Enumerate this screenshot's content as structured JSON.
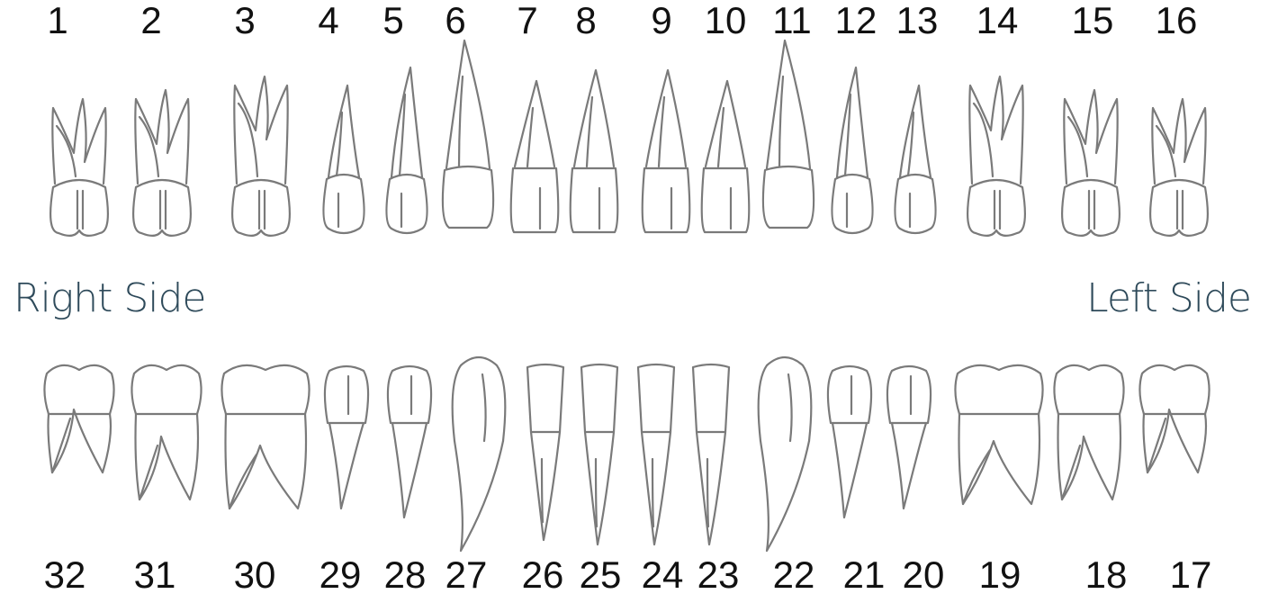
{
  "labels": {
    "right_side": "Right Side",
    "left_side": "Left Side"
  },
  "upper_teeth": [
    {
      "number": "1",
      "kind": "molar"
    },
    {
      "number": "2",
      "kind": "molar"
    },
    {
      "number": "3",
      "kind": "molar"
    },
    {
      "number": "4",
      "kind": "premolar"
    },
    {
      "number": "5",
      "kind": "premolar"
    },
    {
      "number": "6",
      "kind": "canine"
    },
    {
      "number": "7",
      "kind": "incisor"
    },
    {
      "number": "8",
      "kind": "incisor"
    },
    {
      "number": "9",
      "kind": "incisor"
    },
    {
      "number": "10",
      "kind": "incisor"
    },
    {
      "number": "11",
      "kind": "canine"
    },
    {
      "number": "12",
      "kind": "premolar"
    },
    {
      "number": "13",
      "kind": "premolar"
    },
    {
      "number": "14",
      "kind": "molar"
    },
    {
      "number": "15",
      "kind": "molar"
    },
    {
      "number": "16",
      "kind": "molar"
    }
  ],
  "lower_teeth": [
    {
      "number": "32",
      "kind": "molar"
    },
    {
      "number": "31",
      "kind": "molar"
    },
    {
      "number": "30",
      "kind": "molar"
    },
    {
      "number": "29",
      "kind": "premolar"
    },
    {
      "number": "28",
      "kind": "premolar"
    },
    {
      "number": "27",
      "kind": "canine"
    },
    {
      "number": "26",
      "kind": "incisor"
    },
    {
      "number": "25",
      "kind": "incisor"
    },
    {
      "number": "24",
      "kind": "incisor"
    },
    {
      "number": "23",
      "kind": "incisor"
    },
    {
      "number": "22",
      "kind": "canine"
    },
    {
      "number": "21",
      "kind": "premolar"
    },
    {
      "number": "20",
      "kind": "premolar"
    },
    {
      "number": "19",
      "kind": "molar"
    },
    {
      "number": "18",
      "kind": "molar"
    },
    {
      "number": "17",
      "kind": "molar"
    }
  ],
  "colors": {
    "outline": "#7a7a7a",
    "number_text": "#111111",
    "side_label": "#2e4a5a"
  }
}
